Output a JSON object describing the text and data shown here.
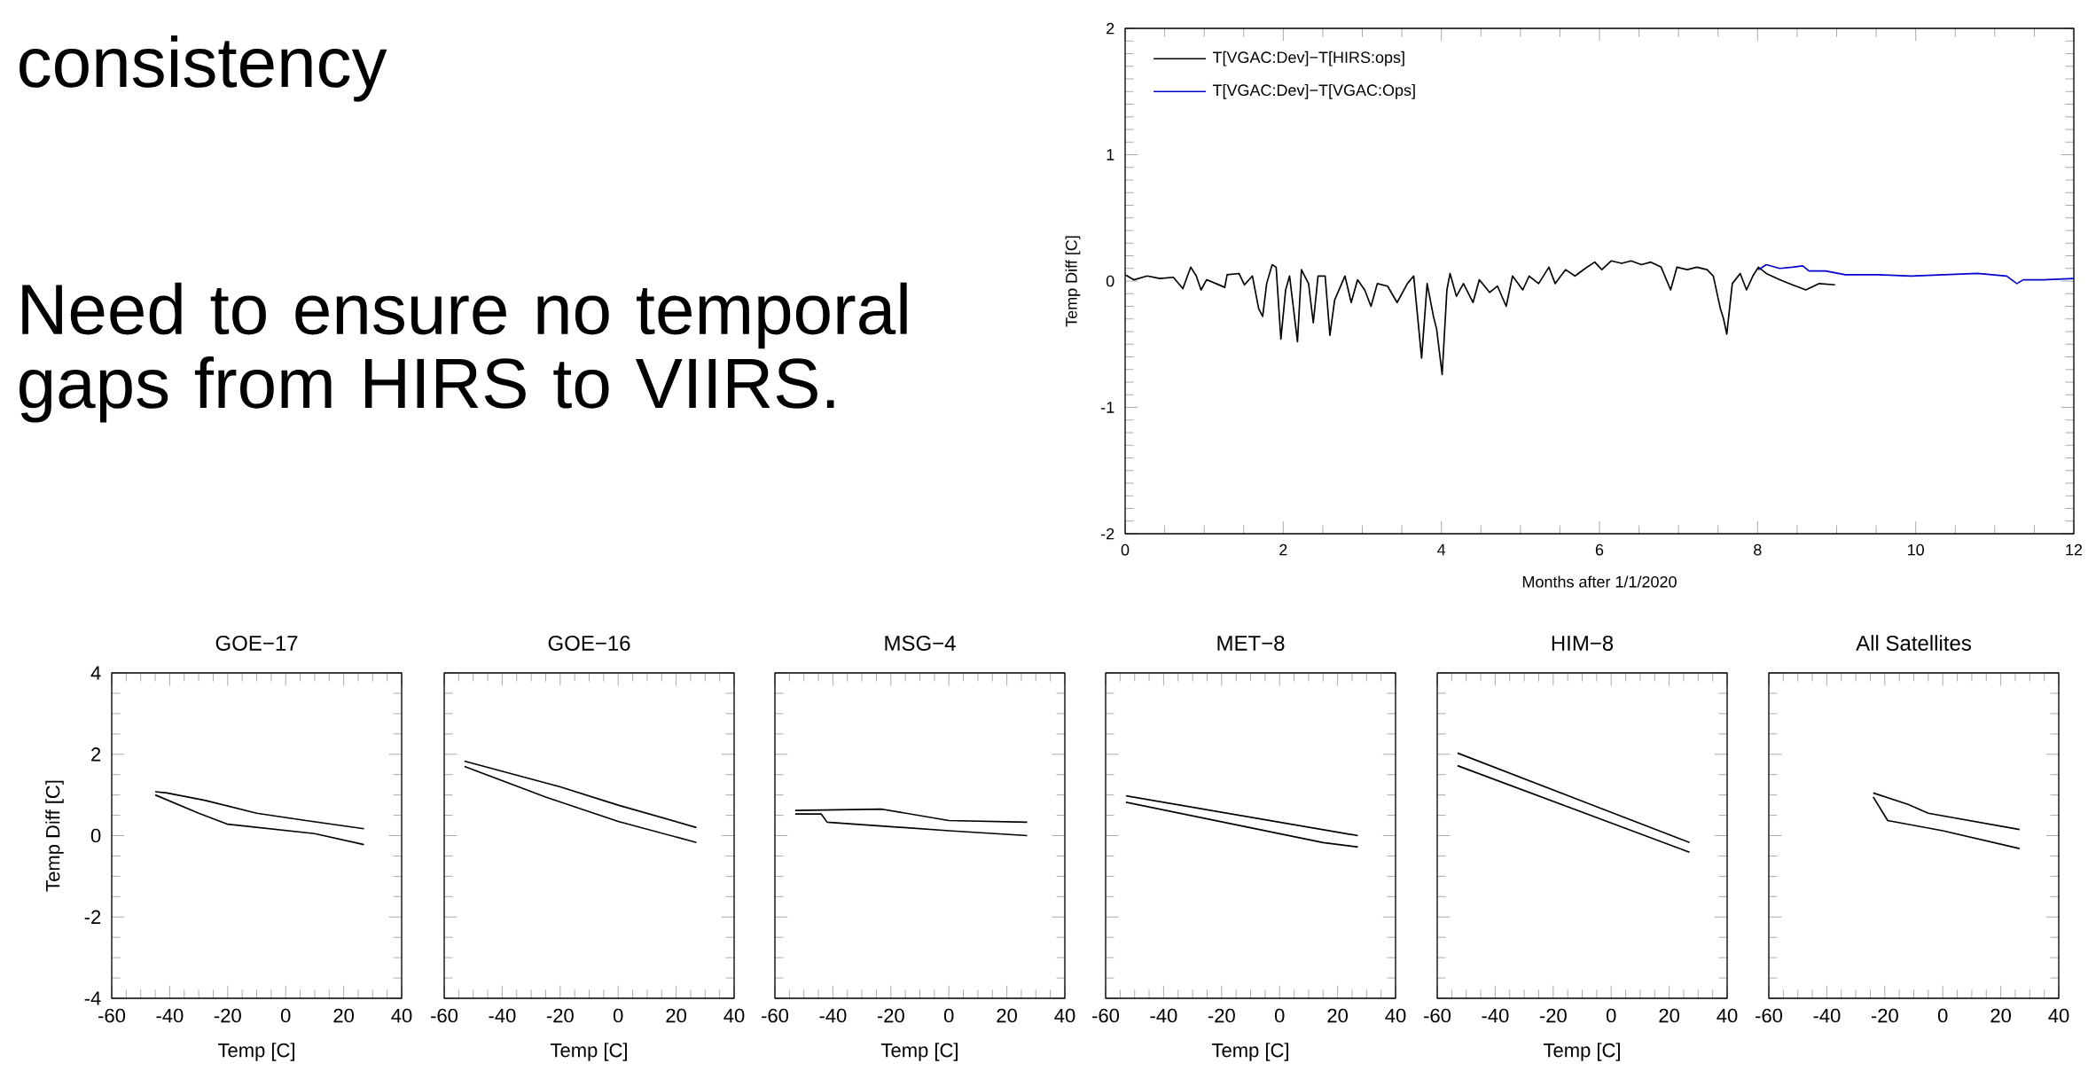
{
  "chart_data": [
    {
      "type": "other",
      "annotations": [
        "consistency",
        "Need to ensure no temporal gaps from HIRS to VIIRS."
      ]
    },
    {
      "type": "line",
      "xlabel": "Months after 1/1/2020",
      "ylabel": "Temp Diff [C]",
      "xlim": [
        0,
        12
      ],
      "ylim": [
        -2,
        2
      ],
      "xticks": [
        0,
        2,
        4,
        6,
        8,
        10,
        12
      ],
      "yticks": [
        -2,
        -1,
        0,
        1,
        2
      ],
      "legend": "top left",
      "series": [
        {
          "name": "T[VGAC:Dev]−T[HIRS:ops]",
          "color": "#000000",
          "x": [
            0.0,
            0.11,
            0.28,
            0.44,
            0.61,
            0.73,
            0.83,
            0.9,
            0.96,
            1.03,
            1.15,
            1.26,
            1.29,
            1.44,
            1.51,
            1.61,
            1.69,
            1.74,
            1.79,
            1.86,
            1.91,
            1.97,
            2.03,
            2.08,
            2.18,
            2.23,
            2.32,
            2.38,
            2.44,
            2.53,
            2.59,
            2.65,
            2.78,
            2.86,
            2.94,
            3.03,
            3.11,
            3.19,
            3.32,
            3.44,
            3.57,
            3.65,
            3.75,
            3.82,
            3.9,
            3.94,
            4.01,
            4.07,
            4.11,
            4.19,
            4.28,
            4.4,
            4.48,
            4.61,
            4.71,
            4.82,
            4.9,
            5.03,
            5.11,
            5.23,
            5.36,
            5.44,
            5.57,
            5.69,
            5.82,
            5.94,
            6.03,
            6.15,
            6.28,
            6.4,
            6.53,
            6.65,
            6.78,
            6.9,
            6.98,
            7.11,
            7.23,
            7.36,
            7.44,
            7.53,
            7.57,
            7.61,
            7.68,
            7.78,
            7.86,
            7.94,
            8.01,
            8.11,
            8.28,
            8.44,
            8.61,
            8.78,
            8.98
          ],
          "values": [
            0.05,
            0.01,
            0.04,
            0.02,
            0.03,
            -0.06,
            0.11,
            0.04,
            -0.07,
            0.01,
            -0.02,
            -0.05,
            0.05,
            0.06,
            -0.03,
            0.04,
            -0.22,
            -0.28,
            -0.02,
            0.13,
            0.11,
            -0.46,
            -0.07,
            0.04,
            -0.48,
            0.09,
            -0.02,
            -0.33,
            0.04,
            0.04,
            -0.43,
            -0.15,
            0.04,
            -0.17,
            0.01,
            -0.07,
            -0.2,
            -0.02,
            -0.04,
            -0.17,
            -0.02,
            0.04,
            -0.61,
            -0.02,
            -0.28,
            -0.38,
            -0.74,
            -0.07,
            0.06,
            -0.12,
            -0.02,
            -0.17,
            0.01,
            -0.09,
            -0.04,
            -0.2,
            0.04,
            -0.07,
            0.04,
            -0.02,
            0.11,
            -0.02,
            0.09,
            0.04,
            0.1,
            0.15,
            0.09,
            0.16,
            0.14,
            0.16,
            0.13,
            0.15,
            0.11,
            -0.07,
            0.11,
            0.09,
            0.11,
            0.09,
            0.04,
            -0.22,
            -0.3,
            -0.42,
            -0.02,
            0.06,
            -0.07,
            0.04,
            0.11,
            0.06,
            0.01,
            -0.03,
            -0.07,
            -0.02,
            -0.03
          ]
        },
        {
          "name": "T[VGAC:Dev]−T[VGAC:Ops]",
          "color": "#0000cc",
          "x": [
            8.01,
            8.11,
            8.28,
            8.44,
            8.57,
            8.65,
            8.86,
            9.11,
            9.53,
            9.94,
            10.36,
            10.78,
            11.15,
            11.28,
            11.36,
            11.61,
            12.0
          ],
          "values": [
            0.09,
            0.13,
            0.1,
            0.11,
            0.12,
            0.08,
            0.08,
            0.05,
            0.05,
            0.04,
            0.05,
            0.06,
            0.04,
            -0.02,
            0.01,
            0.01,
            0.02
          ]
        }
      ]
    },
    {
      "type": "line",
      "title": "GOE−17",
      "xlabel": "Temp [C]",
      "ylabel": "Temp Diff [C]",
      "xlim": [
        -60,
        40
      ],
      "ylim": [
        -4,
        4
      ],
      "xticks": [
        -60,
        -40,
        -20,
        0,
        20,
        40
      ],
      "yticks": [
        -4,
        -2,
        0,
        2,
        4
      ],
      "series": [
        {
          "color": "#000000",
          "x": [
            -45,
            -41,
            -28,
            -10,
            7,
            27
          ],
          "values": [
            1.08,
            1.05,
            0.87,
            0.55,
            0.37,
            0.17
          ]
        },
        {
          "color": "#000000",
          "x": [
            -45,
            -30,
            -20,
            10,
            27
          ],
          "values": [
            1.0,
            0.55,
            0.28,
            0.05,
            -0.22
          ]
        }
      ]
    },
    {
      "type": "line",
      "title": "GOE−16",
      "xlabel": "Temp [C]",
      "xlim": [
        -60,
        40
      ],
      "ylim": [
        -4,
        4
      ],
      "xticks": [
        -60,
        -40,
        -20,
        0,
        20,
        40
      ],
      "yticks": [
        -4,
        -2,
        0,
        2,
        4
      ],
      "tick_labels": "x",
      "series": [
        {
          "color": "#000000",
          "x": [
            -53,
            -20,
            0,
            27
          ],
          "values": [
            1.83,
            1.2,
            0.75,
            0.2
          ]
        },
        {
          "color": "#000000",
          "x": [
            -53,
            -25,
            0,
            27
          ],
          "values": [
            1.7,
            0.95,
            0.35,
            -0.17
          ]
        }
      ]
    },
    {
      "type": "line",
      "title": "MSG−4",
      "xlabel": "Temp [C]",
      "xlim": [
        -60,
        40
      ],
      "ylim": [
        -4,
        4
      ],
      "xticks": [
        -60,
        -40,
        -20,
        0,
        20,
        40
      ],
      "yticks": [
        -4,
        -2,
        0,
        2,
        4
      ],
      "tick_labels": "x",
      "series": [
        {
          "color": "#000000",
          "x": [
            -53,
            -23,
            0,
            27
          ],
          "values": [
            0.62,
            0.65,
            0.37,
            0.33
          ]
        },
        {
          "color": "#000000",
          "x": [
            -53,
            -44,
            -42,
            0,
            27
          ],
          "values": [
            0.53,
            0.53,
            0.33,
            0.12,
            0.0
          ]
        }
      ]
    },
    {
      "type": "line",
      "title": "MET−8",
      "xlabel": "Temp [C]",
      "xlim": [
        -60,
        40
      ],
      "ylim": [
        -4,
        4
      ],
      "xticks": [
        -60,
        -40,
        -20,
        0,
        20,
        40
      ],
      "yticks": [
        -4,
        -2,
        0,
        2,
        4
      ],
      "tick_labels": "x",
      "series": [
        {
          "color": "#000000",
          "x": [
            -53,
            27
          ],
          "values": [
            0.98,
            0.0
          ]
        },
        {
          "color": "#000000",
          "x": [
            -53,
            15,
            27
          ],
          "values": [
            0.82,
            -0.17,
            -0.28
          ]
        }
      ]
    },
    {
      "type": "line",
      "title": "HIM−8",
      "xlabel": "Temp [C]",
      "xlim": [
        -60,
        40
      ],
      "ylim": [
        -4,
        4
      ],
      "xticks": [
        -60,
        -40,
        -20,
        0,
        20,
        40
      ],
      "yticks": [
        -4,
        -2,
        0,
        2,
        4
      ],
      "tick_labels": "x",
      "series": [
        {
          "color": "#000000",
          "x": [
            -53,
            27
          ],
          "values": [
            2.03,
            -0.17
          ]
        },
        {
          "color": "#000000",
          "x": [
            -53,
            27
          ],
          "values": [
            1.72,
            -0.41
          ]
        }
      ]
    },
    {
      "type": "line",
      "title": "All Satellites",
      "xlim": [
        -60,
        40
      ],
      "ylim": [
        -4,
        4
      ],
      "xticks": [
        -60,
        -40,
        -20,
        0,
        20,
        40
      ],
      "yticks": [
        -4,
        -2,
        0,
        2,
        4
      ],
      "tick_labels": "x",
      "series": [
        {
          "color": "#000000",
          "x": [
            -24,
            -12,
            -5,
            26.5
          ],
          "values": [
            1.05,
            0.77,
            0.55,
            0.15
          ]
        },
        {
          "color": "#000000",
          "x": [
            -24,
            -19,
            0,
            26.5
          ],
          "values": [
            0.95,
            0.37,
            0.12,
            -0.32
          ]
        }
      ]
    }
  ]
}
